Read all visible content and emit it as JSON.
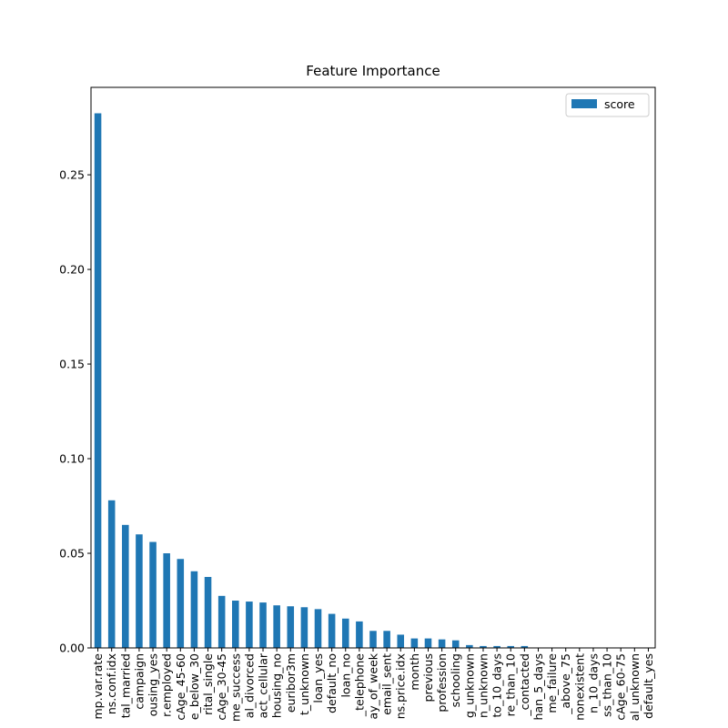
{
  "chart_data": {
    "type": "bar",
    "title": "Feature Importance",
    "categories": [
      "mp.var.rate",
      "ns.conf.idx",
      "tal_married",
      "campaign",
      "ousing_yes",
      "r.employed",
      "cAge_45-60",
      "e_below_30",
      "rital_single",
      "cAge_30-45",
      "me_success",
      "al_divorced",
      "act_cellular",
      "housing_no",
      "euribor3m",
      "t_unknown",
      "loan_yes",
      "default_no",
      "loan_no",
      "_telephone",
      "ay_of_week",
      "email_sent",
      "ns.price.idx",
      "month",
      "previous",
      "profession",
      "schooling",
      "g_unknown",
      "n_unknown",
      "to_10_days",
      "re_than_10",
      "_contacted",
      "han_5_days",
      "me_failure",
      "_above_75",
      "nonexistent",
      "n_10_days",
      "ss_than_10",
      "cAge_60-75",
      "al_unknown",
      "default_yes"
    ],
    "series": [
      {
        "name": "score",
        "color": "#1f77b4",
        "values": [
          0.2825,
          0.078,
          0.065,
          0.06,
          0.056,
          0.05,
          0.047,
          0.0405,
          0.0375,
          0.0275,
          0.025,
          0.0245,
          0.024,
          0.0225,
          0.022,
          0.0215,
          0.0205,
          0.018,
          0.0155,
          0.014,
          0.009,
          0.009,
          0.007,
          0.005,
          0.005,
          0.0045,
          0.004,
          0.0015,
          0.001,
          0.001,
          0.001,
          0.001,
          0,
          0,
          0,
          0,
          0,
          0,
          0,
          0,
          0
        ]
      }
    ],
    "ylim": [
      0,
      0.2962
    ],
    "yticks": [
      {
        "value": 0,
        "label": "0.00"
      },
      {
        "value": 0.05,
        "label": "0.05"
      },
      {
        "value": 0.1,
        "label": "0.10"
      },
      {
        "value": 0.15,
        "label": "0.15"
      },
      {
        "value": 0.2,
        "label": "0.20"
      },
      {
        "value": 0.25,
        "label": "0.25"
      }
    ],
    "legend": "upper right"
  }
}
